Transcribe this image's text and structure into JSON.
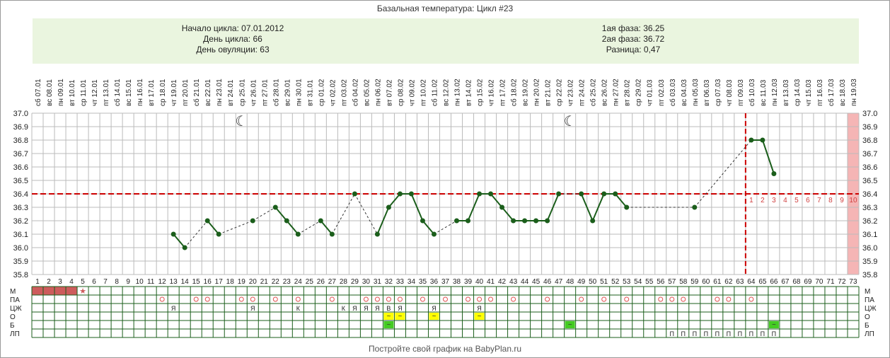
{
  "title": "Базальная температура: Цикл #23",
  "info": {
    "cycle_start": "Начало цикла: 07.01.2012",
    "cycle_day": "День цикла: 66",
    "ovulation_day": "День овуляции: 63",
    "phase1": "1ая фаза: 36.25",
    "phase2": "2ая фаза: 36.72",
    "difference": "Разница: 0,47"
  },
  "footer": "Постройте свой график на BabyPlan.ru",
  "colors": {
    "line": "#1b5e1b",
    "coverline": "#cc0000",
    "grid": "#bbbbbb",
    "row_grid": "#1b5e1b",
    "menstruation": "#cd5c5c",
    "highlight_yellow": "#ffff00",
    "highlight_green": "#44cc22",
    "future_zone": "#f5b5b5"
  },
  "chart_data": {
    "type": "line",
    "title": "Базальная температура: Цикл #23",
    "ylim": [
      35.8,
      37.0
    ],
    "yticks": [
      "37.0",
      "36.9",
      "36.8",
      "36.7",
      "36.6",
      "36.5",
      "36.4",
      "36.3",
      "36.2",
      "36.1",
      "36.0",
      "35.9",
      "35.8"
    ],
    "grid": true,
    "coverline": 36.4,
    "ovulation_day": 63,
    "x_days": [
      1,
      2,
      3,
      4,
      5,
      6,
      7,
      8,
      9,
      10,
      11,
      12,
      13,
      14,
      15,
      16,
      17,
      18,
      19,
      20,
      21,
      22,
      23,
      24,
      25,
      26,
      27,
      28,
      29,
      30,
      31,
      32,
      33,
      34,
      35,
      36,
      37,
      38,
      39,
      40,
      41,
      42,
      43,
      44,
      45,
      46,
      47,
      48,
      49,
      50,
      51,
      52,
      53,
      54,
      55,
      56,
      57,
      58,
      59,
      60,
      61,
      62,
      63,
      64,
      65,
      66,
      67,
      68,
      69,
      70,
      71,
      72,
      73
    ],
    "dates": [
      "сб 07.01",
      "вс 08.01",
      "пн 09.01",
      "вт 10.01",
      "ср 11.01",
      "чт 12.01",
      "пт 13.01",
      "сб 14.01",
      "вс 15.01",
      "пн 16.01",
      "вт 17.01",
      "ср 18.01",
      "чт 19.01",
      "пт 20.01",
      "сб 21.01",
      "вс 22.01",
      "пн 23.01",
      "вт 24.01",
      "ср 25.01",
      "чт 26.01",
      "пт 27.01",
      "сб 28.01",
      "вс 29.01",
      "пн 30.01",
      "вт 31.01",
      "ср 01.02",
      "чт 02.02",
      "пт 03.02",
      "сб 04.02",
      "вс 05.02",
      "пн 06.02",
      "вт 07.02",
      "ср 08.02",
      "чт 09.02",
      "пт 10.02",
      "сб 11.02",
      "вс 12.02",
      "пн 13.02",
      "вт 14.02",
      "ср 15.02",
      "чт 16.02",
      "пт 17.02",
      "сб 18.02",
      "вс 19.02",
      "пн 20.02",
      "вт 21.02",
      "ср 22.02",
      "чт 23.02",
      "пт 24.02",
      "сб 25.02",
      "вс 26.02",
      "пн 27.02",
      "вт 28.02",
      "ср 29.02",
      "чт 01.03",
      "пт 02.03",
      "сб 03.03",
      "вс 04.03",
      "пн 05.03",
      "вт 06.03",
      "ср 07.03",
      "чт 08.03",
      "пт 09.03",
      "сб 10.03",
      "вс 11.03",
      "пн 12.03",
      "вт 13.03",
      "ср 14.03",
      "чт 15.03",
      "пт 16.03",
      "сб 17.03",
      "вс 18.03",
      "пн 19.03"
    ],
    "series": [
      {
        "points": [
          {
            "x": 13,
            "y": 36.1
          },
          {
            "x": 14,
            "y": 36.0
          },
          {
            "x": 16,
            "y": 36.2
          },
          {
            "x": 17,
            "y": 36.1
          },
          {
            "x": 20,
            "y": 36.2
          },
          {
            "x": 22,
            "y": 36.3
          },
          {
            "x": 23,
            "y": 36.2
          },
          {
            "x": 24,
            "y": 36.1
          },
          {
            "x": 26,
            "y": 36.2
          },
          {
            "x": 27,
            "y": 36.1
          },
          {
            "x": 29,
            "y": 36.4
          },
          {
            "x": 31,
            "y": 36.1
          },
          {
            "x": 32,
            "y": 36.3
          },
          {
            "x": 33,
            "y": 36.4
          },
          {
            "x": 34,
            "y": 36.4
          },
          {
            "x": 35,
            "y": 36.2
          },
          {
            "x": 36,
            "y": 36.1
          },
          {
            "x": 38,
            "y": 36.2
          },
          {
            "x": 39,
            "y": 36.2
          },
          {
            "x": 40,
            "y": 36.4
          },
          {
            "x": 41,
            "y": 36.4
          },
          {
            "x": 42,
            "y": 36.3
          },
          {
            "x": 43,
            "y": 36.2
          },
          {
            "x": 44,
            "y": 36.2
          },
          {
            "x": 45,
            "y": 36.2
          },
          {
            "x": 46,
            "y": 36.2
          },
          {
            "x": 47,
            "y": 36.4
          },
          {
            "x": 49,
            "y": 36.4
          },
          {
            "x": 50,
            "y": 36.2
          },
          {
            "x": 51,
            "y": 36.4
          },
          {
            "x": 52,
            "y": 36.4
          },
          {
            "x": 53,
            "y": 36.3
          },
          {
            "x": 59,
            "y": 36.3
          },
          {
            "x": 64,
            "y": 36.8
          },
          {
            "x": 65,
            "y": 36.8
          },
          {
            "x": 66,
            "y": 36.55
          }
        ]
      }
    ],
    "moon_days": [
      19,
      48
    ],
    "luteal_day_labels": [
      "1",
      "2",
      "3",
      "4",
      "5",
      "6",
      "7",
      "8",
      "9",
      "10"
    ],
    "rows": [
      {
        "label": "М",
        "cells": {
          "1": "fill",
          "2": "fill",
          "3": "fill",
          "4": "fill",
          "5": "star"
        }
      },
      {
        "label": "ПА",
        "cells": {
          "12": "o",
          "15": "o",
          "16": "o",
          "19": "o",
          "20": "o",
          "22": "o",
          "24": "o",
          "27": "o",
          "30": "o",
          "31": "o",
          "32": "o",
          "33": "o",
          "35": "o",
          "37": "o",
          "39": "o",
          "40": "o",
          "41": "o",
          "43": "o",
          "46": "o",
          "49": "o",
          "51": "o",
          "53": "o",
          "56": "o",
          "57": "o",
          "58": "o",
          "61": "o",
          "62": "o",
          "64": "o"
        }
      },
      {
        "label": "ЦЖ",
        "cells": {
          "13": "Я",
          "20": "Я",
          "24": "К",
          "28": "К",
          "29": "Я",
          "30": "Я",
          "31": "Я",
          "32": "В",
          "33": "Я",
          "36": "Я",
          "40": "Я"
        }
      },
      {
        "label": "О",
        "cells": {
          "32": "~",
          "33": "~",
          "36": "~",
          "40": "~"
        }
      },
      {
        "label": "Б",
        "cells": {
          "32": "~",
          "48": "~",
          "66": "~"
        }
      },
      {
        "label": "ЛП",
        "cells": {
          "57": "П",
          "58": "П",
          "59": "П",
          "60": "П",
          "61": "П",
          "62": "П",
          "63": "П",
          "64": "П",
          "65": "П",
          "66": "П"
        }
      }
    ]
  }
}
